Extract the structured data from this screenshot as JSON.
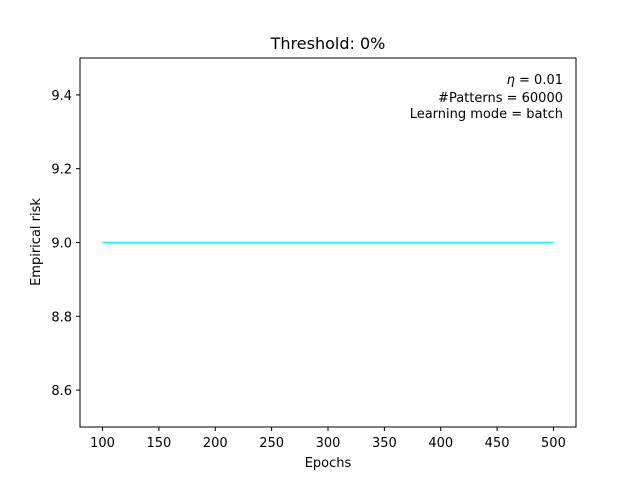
{
  "chart_data": {
    "type": "line",
    "title": "Threshold: 0%",
    "xlabel": "Epochs",
    "ylabel": "Empirical risk",
    "xlim": [
      80,
      520
    ],
    "ylim": [
      8.5,
      9.5
    ],
    "xticks": [
      100,
      150,
      200,
      250,
      300,
      350,
      400,
      450,
      500
    ],
    "yticks": [
      8.6,
      8.8,
      9.0,
      9.2,
      9.4
    ],
    "ytick_labels": [
      "8.6",
      "8.8",
      "9.0",
      "9.2",
      "9.4"
    ],
    "grid": false,
    "series": [
      {
        "color": "#00ffff",
        "x": [
          100,
          500
        ],
        "y": [
          9.0,
          9.0
        ]
      }
    ],
    "annotations": {
      "eta_symbol": "η",
      "eta_text": " = 0.01",
      "patterns": "#Patterns = 60000",
      "mode": "Learning mode = batch"
    }
  }
}
